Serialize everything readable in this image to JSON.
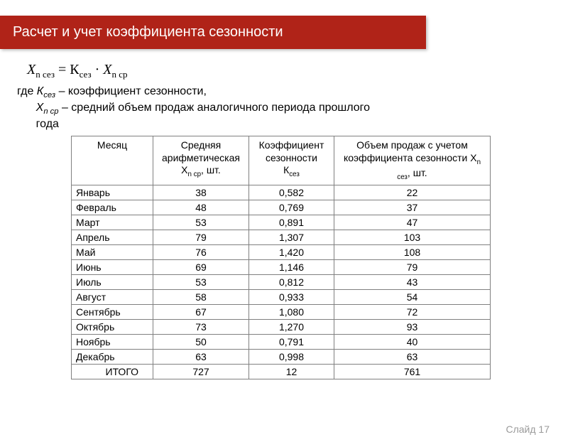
{
  "header": {
    "title": "Расчет и учет коэффициента сезонности"
  },
  "formula": {
    "lhs_base": "X",
    "lhs_sub": "n сез",
    "eq": " = ",
    "k_base": "К",
    "k_sub": "сез",
    "dot": " · ",
    "x_base": "X",
    "x_sub": "n ср"
  },
  "legend": {
    "lead": "где ",
    "k_sym": "К",
    "k_sub": "сез",
    "k_desc": " – коэффициент сезонности,",
    "x_pad": "      ",
    "x_sym": "X",
    "x_sub": "n ср",
    "x_desc_1": " – средний объем продаж аналогичного периода прошлого",
    "x_desc_2": "года"
  },
  "table": {
    "headers": {
      "month": "Месяц",
      "avg_l1": "Средняя",
      "avg_l2": "арифметическая",
      "avg_l3_pre": "X",
      "avg_l3_sub": "n ср",
      "avg_l3_post": ", шт.",
      "coef_l1": "Коэффициент",
      "coef_l2": "сезонности",
      "coef_l3_pre": "К",
      "coef_l3_sub": "сез",
      "vol_l1": "Объем продаж с учетом",
      "vol_l2_pre": "коэффициента сезонности X",
      "vol_l2_sub": "n",
      "vol_l3_sub": "сез",
      "vol_l3_post": ", шт."
    },
    "rows": [
      {
        "month": "Январь",
        "avg": "38",
        "coef": "0,582",
        "vol": "22"
      },
      {
        "month": "Февраль",
        "avg": "48",
        "coef": "0,769",
        "vol": "37"
      },
      {
        "month": "Март",
        "avg": "53",
        "coef": "0,891",
        "vol": "47"
      },
      {
        "month": "Апрель",
        "avg": "79",
        "coef": "1,307",
        "vol": "103"
      },
      {
        "month": "Май",
        "avg": "76",
        "coef": "1,420",
        "vol": "108"
      },
      {
        "month": "Июнь",
        "avg": "69",
        "coef": "1,146",
        "vol": "79"
      },
      {
        "month": "Июль",
        "avg": "53",
        "coef": "0,812",
        "vol": "43"
      },
      {
        "month": "Август",
        "avg": "58",
        "coef": "0,933",
        "vol": "54"
      },
      {
        "month": "Сентябрь",
        "avg": "67",
        "coef": "1,080",
        "vol": "72"
      },
      {
        "month": "Октябрь",
        "avg": "73",
        "coef": "1,270",
        "vol": "93"
      },
      {
        "month": "Ноябрь",
        "avg": "50",
        "coef": "0,791",
        "vol": "40"
      },
      {
        "month": "Декабрь",
        "avg": "63",
        "coef": "0,998",
        "vol": "63"
      }
    ],
    "total": {
      "label": "ИТОГО",
      "avg": "727",
      "coef": "12",
      "vol": "761"
    }
  },
  "footer": {
    "slide": "Слайд 17"
  },
  "style": {
    "header_bg": "#b02318",
    "header_color": "#ffffff",
    "border_color": "#808080",
    "footer_color": "#9a9a9a",
    "font_body": "Arial, sans-serif",
    "font_formula": "Cambria Math, Times New Roman, serif"
  }
}
